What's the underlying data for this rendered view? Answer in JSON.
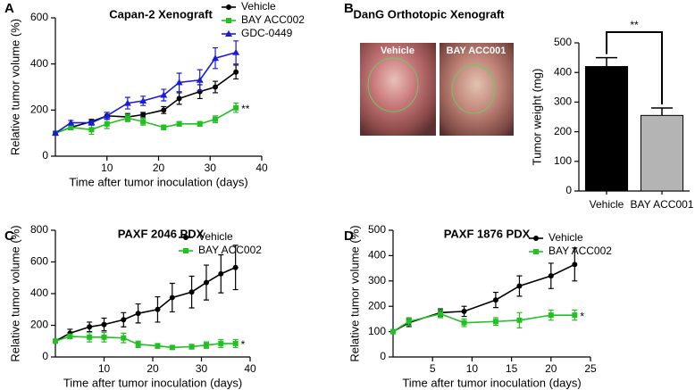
{
  "chart_data": [
    {
      "type": "line",
      "panel": "A",
      "title": "Capan-2 Xenograft",
      "xlabel": "Time after tumor inoculation (days)",
      "ylabel": "Relative tumor volume (%)",
      "x": [
        0,
        3,
        7,
        10,
        14,
        17,
        21,
        24,
        28,
        31,
        35
      ],
      "xlim": [
        0,
        40
      ],
      "xticks": [
        10,
        20,
        30,
        40
      ],
      "ylim": [
        0,
        600
      ],
      "yticks": [
        0,
        200,
        400,
        600
      ],
      "series": [
        {
          "name": "Vehicle",
          "color": "#000000",
          "marker": "circle",
          "values": [
            100,
            125,
            150,
            175,
            170,
            180,
            200,
            250,
            280,
            300,
            365
          ],
          "errors": [
            5,
            10,
            10,
            15,
            15,
            10,
            15,
            25,
            30,
            25,
            30
          ]
        },
        {
          "name": "BAY ACC002",
          "color": "#22c022",
          "marker": "square",
          "values": [
            100,
            125,
            115,
            140,
            165,
            150,
            125,
            140,
            140,
            160,
            210
          ],
          "errors": [
            5,
            10,
            20,
            20,
            15,
            15,
            10,
            10,
            10,
            15,
            20
          ]
        },
        {
          "name": "GDC-0449",
          "color": "#1a1adc",
          "marker": "triangle",
          "values": [
            100,
            145,
            145,
            175,
            230,
            240,
            265,
            320,
            330,
            425,
            450
          ],
          "errors": [
            5,
            10,
            10,
            15,
            25,
            20,
            25,
            40,
            45,
            45,
            50
          ]
        }
      ],
      "annotation": "**"
    },
    {
      "type": "bar",
      "panel": "B",
      "title": "DanG Orthotopic Xenograft",
      "photo_labels": [
        "Vehicle",
        "BAY ACC001"
      ],
      "ylabel": "Tumor weight (mg)",
      "categories": [
        "Vehicle",
        "BAY ACC001"
      ],
      "values": [
        420,
        255
      ],
      "errors": [
        30,
        25
      ],
      "colors": [
        "#000000",
        "#b4b4b4"
      ],
      "ylim": [
        0,
        500
      ],
      "yticks": [
        0,
        100,
        200,
        300,
        400,
        500
      ],
      "annotation": "**"
    },
    {
      "type": "line",
      "panel": "C",
      "title": "PAXF 2046 PDX",
      "xlabel": "Time after tumor inoculation (days)",
      "ylabel": "Relative tumor volume (%)",
      "x": [
        0,
        3,
        7,
        10,
        14,
        17,
        21,
        24,
        28,
        31,
        34,
        37
      ],
      "xlim": [
        0,
        40
      ],
      "xticks": [
        10,
        20,
        30,
        40
      ],
      "ylim": [
        0,
        800
      ],
      "yticks": [
        0,
        200,
        400,
        600,
        800
      ],
      "series": [
        {
          "name": "Vehicle",
          "color": "#000000",
          "marker": "circle",
          "values": [
            100,
            150,
            190,
            205,
            235,
            275,
            300,
            375,
            410,
            470,
            525,
            565
          ],
          "errors": [
            10,
            25,
            30,
            40,
            45,
            60,
            80,
            90,
            100,
            110,
            120,
            140
          ]
        },
        {
          "name": "BAY ACC002",
          "color": "#22c022",
          "marker": "square",
          "values": [
            100,
            130,
            125,
            125,
            120,
            80,
            70,
            60,
            65,
            75,
            85,
            85
          ],
          "errors": [
            10,
            15,
            30,
            30,
            30,
            20,
            15,
            10,
            15,
            20,
            25,
            25
          ]
        }
      ],
      "annotation": "*"
    },
    {
      "type": "line",
      "panel": "D",
      "title": "PAXF 1876 PDX",
      "xlabel": "Time after tumor inoculation (days)",
      "ylabel": "Relative tumor volume (%)",
      "x": [
        0,
        2,
        6,
        9,
        13,
        16,
        20,
        23
      ],
      "xlim": [
        0,
        25
      ],
      "xticks": [
        5,
        10,
        15,
        20,
        25
      ],
      "ylim": [
        0,
        500
      ],
      "yticks": [
        0,
        100,
        200,
        300,
        400,
        500
      ],
      "series": [
        {
          "name": "Vehicle",
          "color": "#000000",
          "marker": "circle",
          "values": [
            100,
            135,
            175,
            180,
            225,
            280,
            320,
            365
          ],
          "errors": [
            5,
            15,
            15,
            20,
            30,
            40,
            50,
            65
          ]
        },
        {
          "name": "BAY ACC002",
          "color": "#22c022",
          "marker": "square",
          "values": [
            100,
            140,
            170,
            135,
            140,
            145,
            165,
            165
          ],
          "errors": [
            5,
            15,
            15,
            15,
            15,
            30,
            20,
            20
          ]
        }
      ],
      "annotation": "*"
    }
  ]
}
